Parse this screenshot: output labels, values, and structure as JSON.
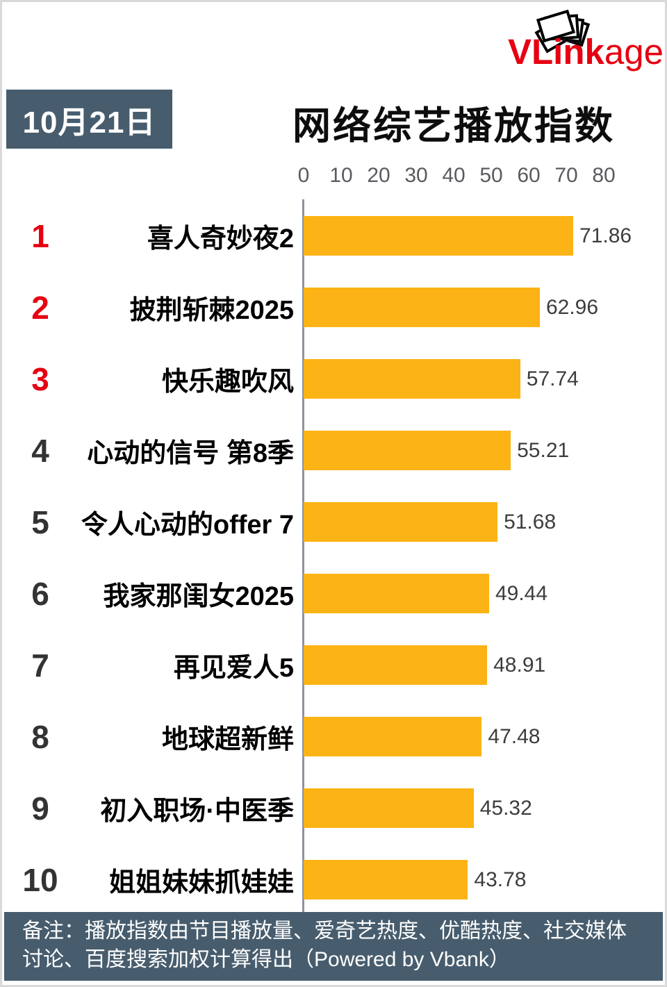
{
  "logo": {
    "bold": "VLink",
    "light": "age",
    "color": "#e60012"
  },
  "header": {
    "date_badge": "10月21日",
    "title": "网络综艺播放指数",
    "badge_bg": "#475d6e"
  },
  "chart_data": {
    "type": "bar",
    "orientation": "horizontal",
    "title": "网络综艺播放指数",
    "axis_ticks": [
      0,
      10,
      20,
      30,
      40,
      50,
      60,
      70,
      80
    ],
    "axis_max": 80,
    "bar_color": "#fcb315",
    "rank_red_color": "#e60012",
    "top_red_ranks": 3,
    "grid": false,
    "legend": false,
    "items": [
      {
        "rank": "1",
        "name": "喜人奇妙夜2",
        "value": 71.86,
        "value_label": "71.86"
      },
      {
        "rank": "2",
        "name": "披荆斩棘2025",
        "value": 62.96,
        "value_label": "62.96"
      },
      {
        "rank": "3",
        "name": "快乐趣吹风",
        "value": 57.74,
        "value_label": "57.74"
      },
      {
        "rank": "4",
        "name": "心动的信号 第8季",
        "value": 55.21,
        "value_label": "55.21"
      },
      {
        "rank": "5",
        "name": "令人心动的offer 7",
        "value": 51.68,
        "value_label": "51.68"
      },
      {
        "rank": "6",
        "name": "我家那闺女2025",
        "value": 49.44,
        "value_label": "49.44"
      },
      {
        "rank": "7",
        "name": "再见爱人5",
        "value": 48.91,
        "value_label": "48.91"
      },
      {
        "rank": "8",
        "name": "地球超新鲜",
        "value": 47.48,
        "value_label": "47.48"
      },
      {
        "rank": "9",
        "name": "初入职场·中医季",
        "value": 45.32,
        "value_label": "45.32"
      },
      {
        "rank": "10",
        "name": "姐姐妹妹抓娃娃",
        "value": 43.78,
        "value_label": "43.78"
      }
    ]
  },
  "footer": {
    "note": "备注：播放指数由节目播放量、爱奇艺热度、优酷热度、社交媒体讨论、百度搜索加权计算得出（Powered by Vbank）"
  }
}
